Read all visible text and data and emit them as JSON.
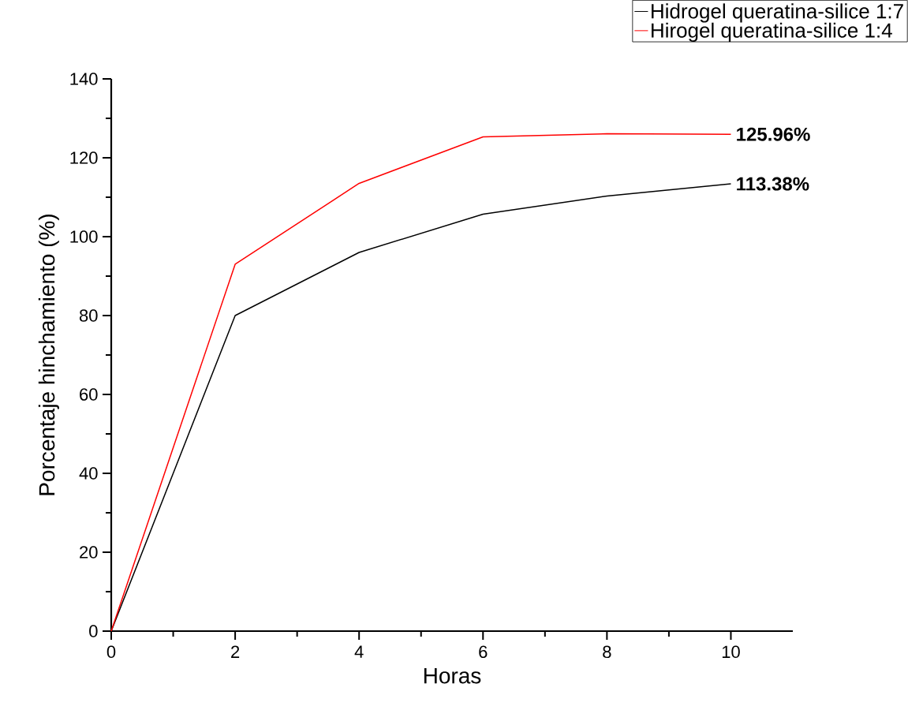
{
  "chart_data": {
    "type": "line",
    "xlabel": "Horas",
    "ylabel": "Porcentaje hinchamiento (%)",
    "x": [
      0,
      2,
      4,
      6,
      8,
      10
    ],
    "series": [
      {
        "name": "Hidrogel queratina-silice 1:7",
        "color": "#000000",
        "values": [
          0,
          80,
          96,
          105.7,
          110.3,
          113.38
        ]
      },
      {
        "name": "Hirogel queratina-silice 1:4",
        "color": "#ff0000",
        "values": [
          0,
          93,
          113.5,
          125.3,
          126.1,
          125.96
        ]
      }
    ],
    "annotations": [
      {
        "text": "125.96%",
        "x": 10,
        "y": 125.96
      },
      {
        "text": "113.38%",
        "x": 10,
        "y": 113.38
      }
    ],
    "xlim": [
      0,
      11
    ],
    "ylim": [
      0,
      140
    ],
    "xticks": [
      0,
      2,
      4,
      6,
      8,
      10
    ],
    "yticks": [
      0,
      20,
      40,
      60,
      80,
      100,
      120,
      140
    ],
    "grid": false,
    "legend": "top right"
  }
}
